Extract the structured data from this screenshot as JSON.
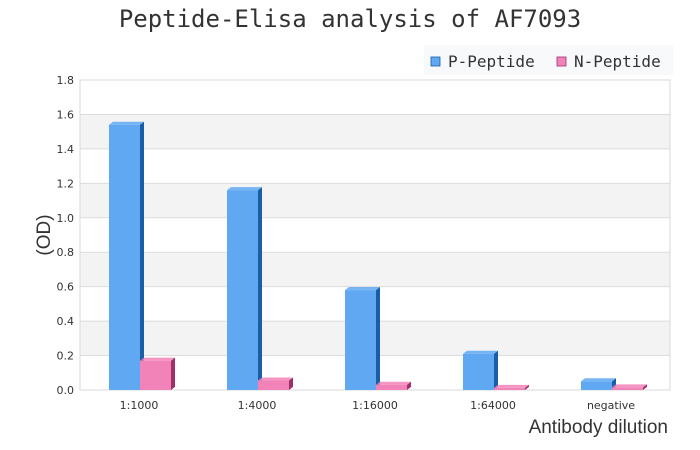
{
  "chart_data": {
    "type": "bar",
    "title": "Peptide-Elisa analysis of AF7093",
    "xlabel": "Antibody dilution",
    "ylabel": "(OD)",
    "ylim": [
      0,
      1.8
    ],
    "yticks": [
      "0.0",
      "0.2",
      "0.4",
      "0.6",
      "0.8",
      "1.0",
      "1.2",
      "1.4",
      "1.6",
      "1.8"
    ],
    "categories": [
      "1:1000",
      "1:4000",
      "1:16000",
      "1:64000",
      "negative"
    ],
    "series": [
      {
        "name": "P-Peptide",
        "values": [
          1.54,
          1.16,
          0.58,
          0.21,
          0.05
        ],
        "color": "#60a8f2",
        "side_color": "#1a5ea8"
      },
      {
        "name": "N-Peptide",
        "values": [
          0.17,
          0.055,
          0.03,
          0.012,
          0.015
        ],
        "color": "#f283b8",
        "side_color": "#a0306a"
      }
    ],
    "grid": true,
    "legend": "top-right"
  }
}
